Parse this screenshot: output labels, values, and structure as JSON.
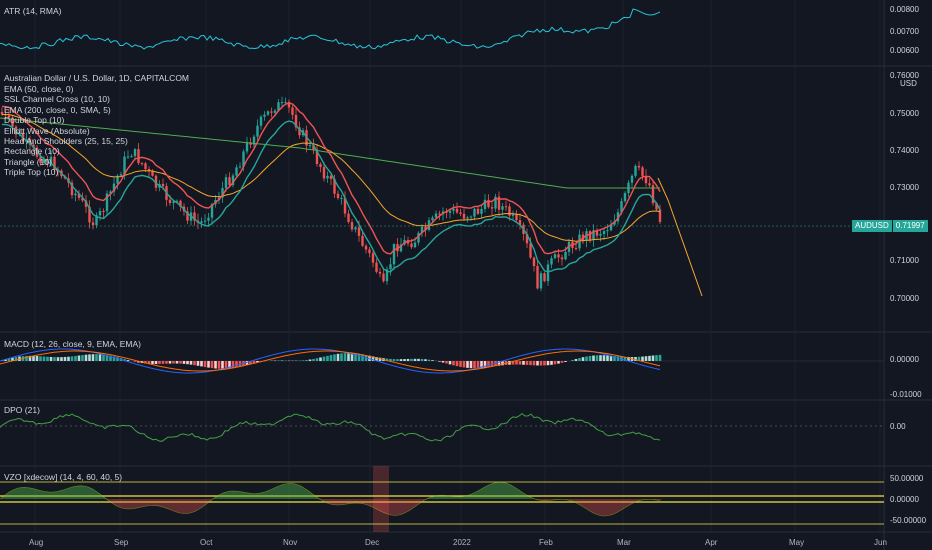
{
  "atr": {
    "title": "ATR (14, RMA)",
    "ticks": [
      "0.00800",
      "0.00700",
      "0.00600"
    ]
  },
  "main": {
    "symbol_title": "Australian Dollar / U.S. Dollar, 1D, CAPITALCOM",
    "indicators": [
      "EMA (50, close, 0)",
      "SSL Channel Cross (10, 10)",
      "EMA (200, close, 0, SMA, 5)",
      "Double Top (10)",
      "Elliott Wave (Absolute)",
      "Head And Shoulders (25, 15, 25)",
      "Rectangle (10)",
      "Triangle (10)",
      "Triple Top (10)"
    ],
    "currency": "USD",
    "ticks": [
      "0.75000",
      "0.74000",
      "0.73000",
      "0.71000",
      "0.70000"
    ],
    "top_tick": "0.76000",
    "price_label": {
      "symbol": "AUDUSD",
      "value": "0.71997"
    }
  },
  "macd": {
    "title": "MACD (12, 26, close, 9, EMA, EMA)",
    "ticks": [
      "0.00000",
      "-0.01000"
    ]
  },
  "dpo": {
    "title": "DPO (21)",
    "ticks": [
      "0.00"
    ]
  },
  "vzo": {
    "title": "VZO [xdecow] (14, 4, 60, 40, 5)",
    "ticks": [
      "50.00000",
      "0.00000",
      "-50.00000"
    ]
  },
  "time_axis": [
    "Aug",
    "Sep",
    "Oct",
    "Nov",
    "Dec",
    "2022",
    "Feb",
    "Mar",
    "Apr",
    "May",
    "Jun"
  ],
  "colors": {
    "bull": "#26a69a",
    "bear": "#ef5350",
    "ema50": "#f7a829",
    "ema200": "#4caf50",
    "ssl_up": "#f05454",
    "atr": "#26c6da",
    "macd": "#2962ff",
    "signal": "#ff6d00",
    "dpo": "#43a047",
    "vzo_band": "#f0e442"
  }
}
